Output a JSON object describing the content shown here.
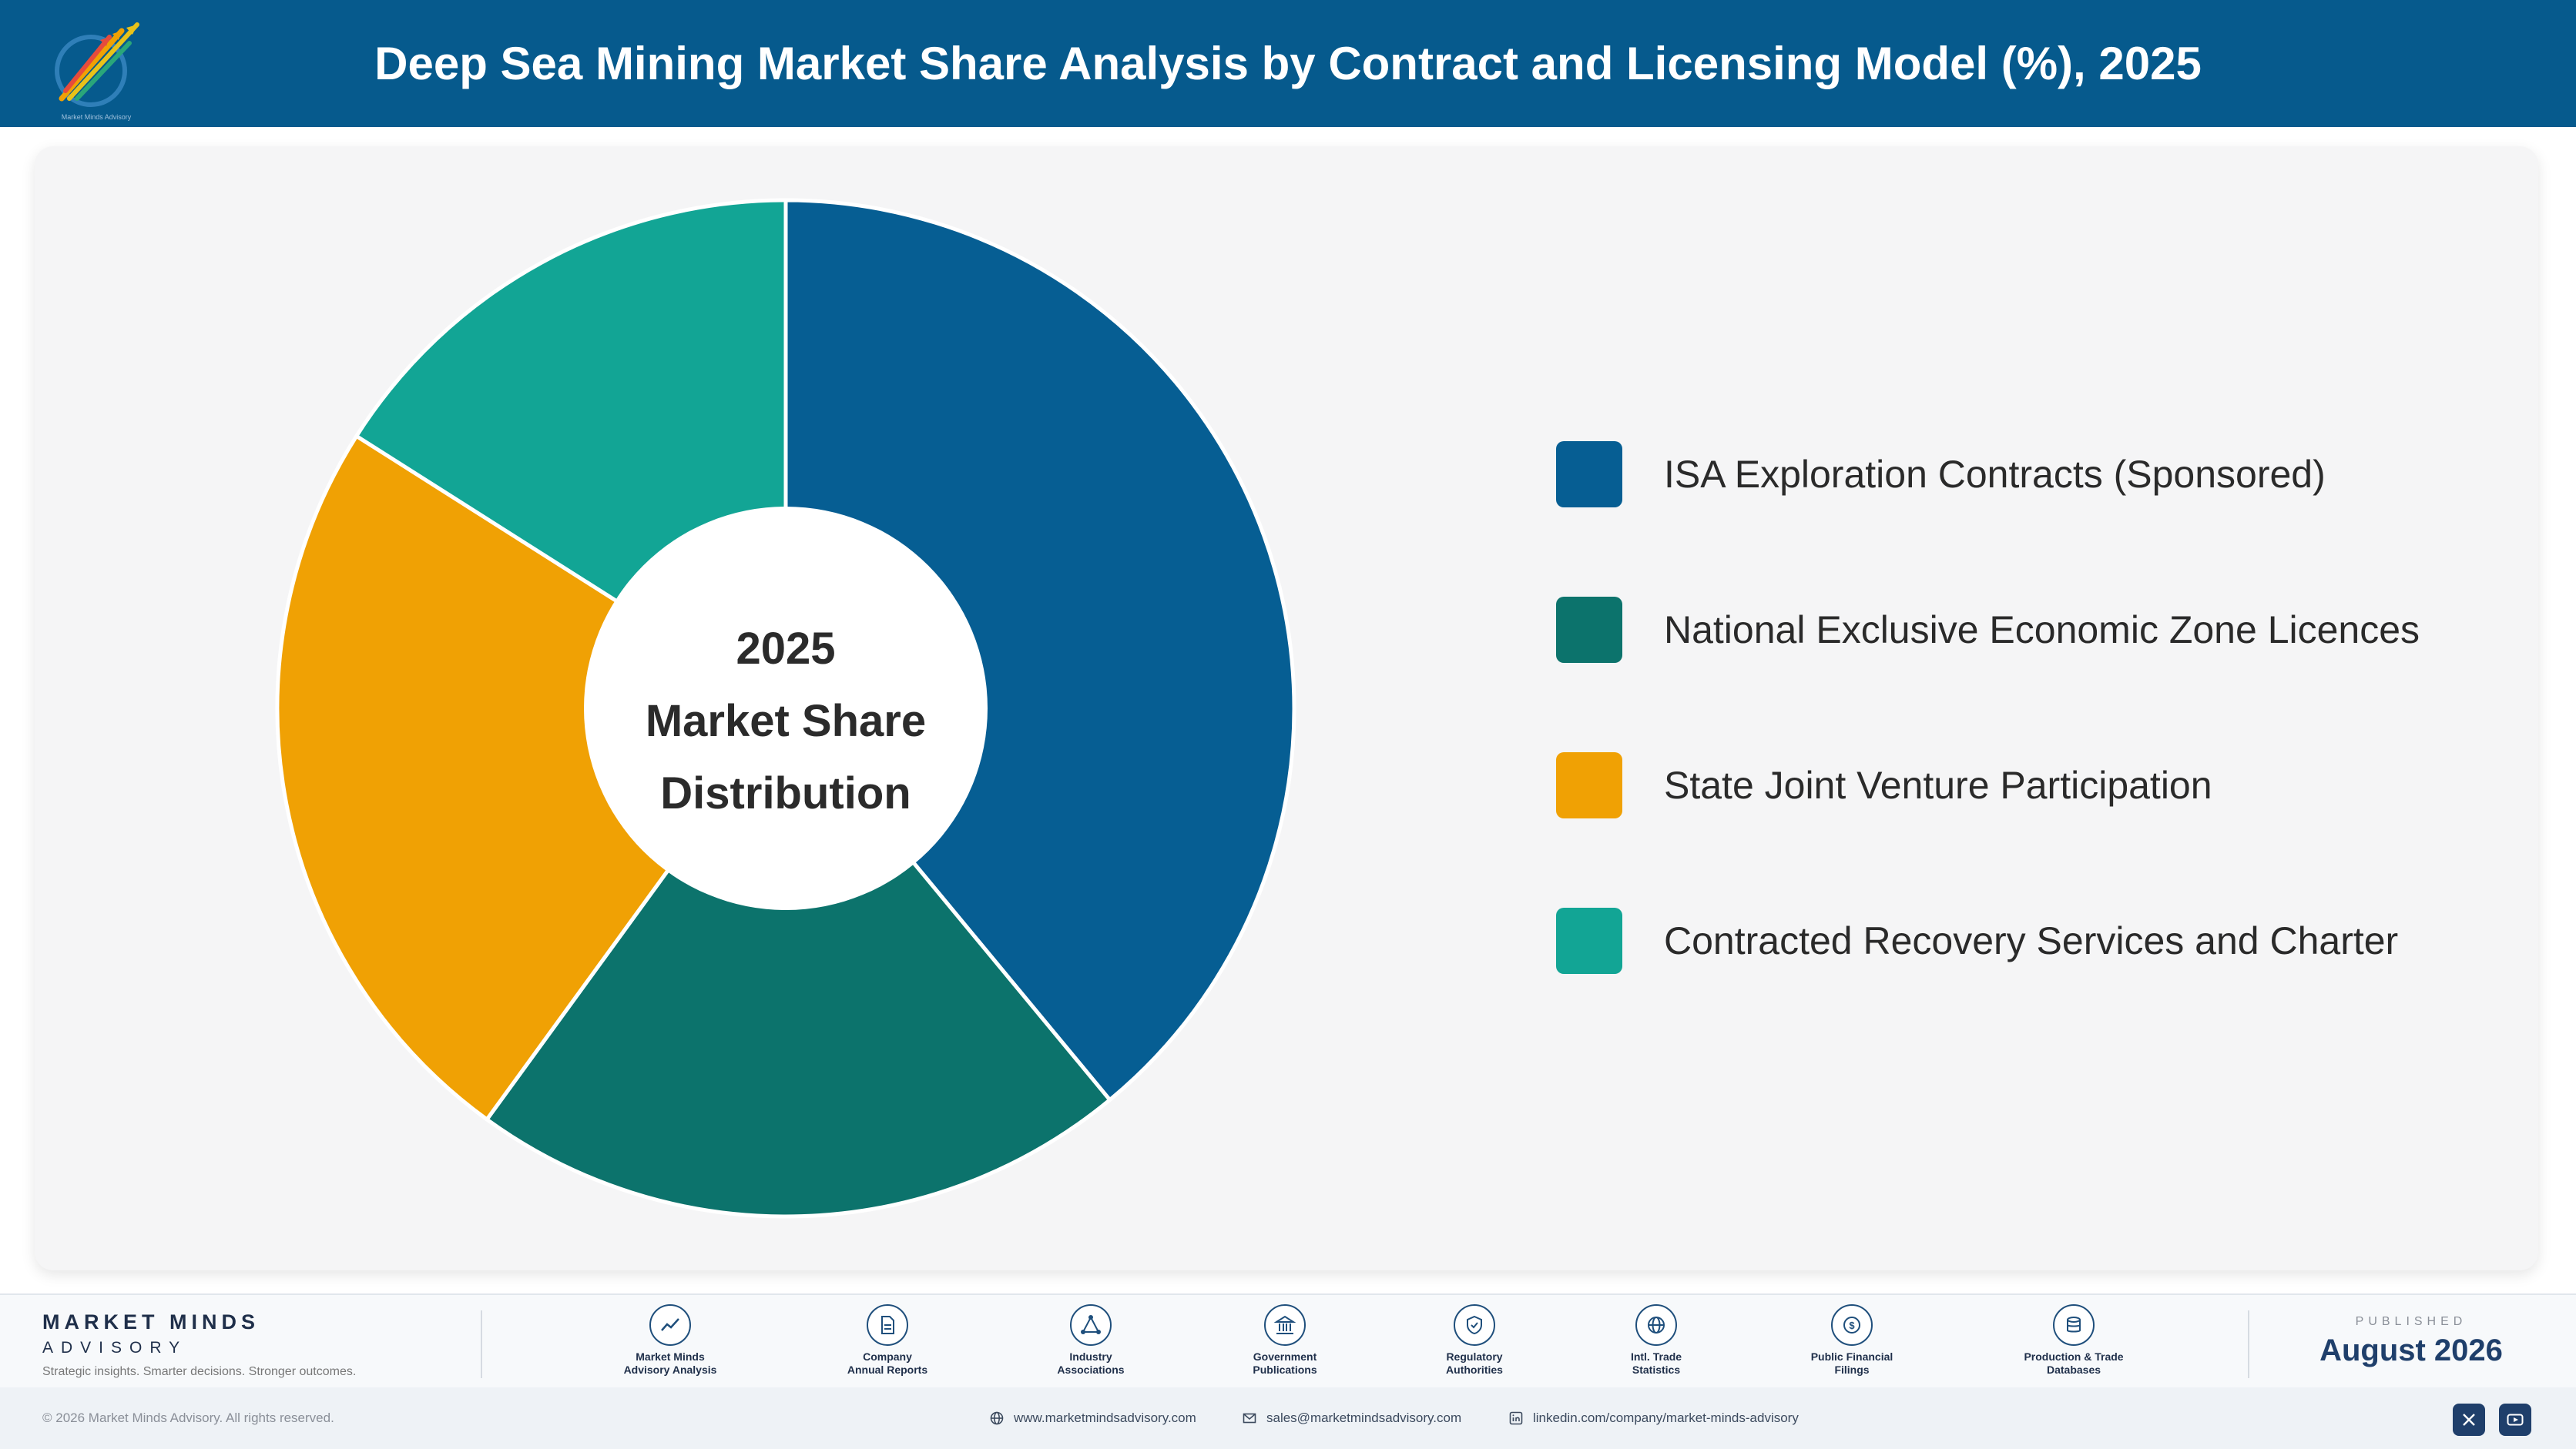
{
  "header": {
    "title": "Deep Sea Mining Market Share Analysis by Contract and Licensing Model (%), 2025",
    "logo_icon": "market-minds-logo-icon",
    "logo_text": "Market Minds Advisory"
  },
  "chart_data": {
    "type": "pie",
    "style": "donut",
    "title": "Deep Sea Mining Market Share Analysis by Contract and Licensing Model (%), 2025",
    "center_label": [
      "2025",
      "Market Share",
      "Distribution"
    ],
    "legend_position": "right",
    "categories": [
      "ISA Exploration Contracts (Sponsored)",
      "National Exclusive Economic Zone Licences",
      "State Joint Venture Participation",
      "Contracted Recovery Services and Charter"
    ],
    "values": [
      39,
      21,
      24,
      16
    ],
    "colors": [
      "#065e93",
      "#0c736c",
      "#f0a104",
      "#12a595"
    ]
  },
  "footer": {
    "brand_name": "MARKET MINDS",
    "brand_sub": "ADVISORY",
    "tagline": "Strategic insights. Smarter decisions. Stronger outcomes.",
    "sources": [
      {
        "label": "Market Minds\nAdvisory Analysis",
        "icon": "trend-chart-icon"
      },
      {
        "label": "Company\nAnnual Reports",
        "icon": "document-icon"
      },
      {
        "label": "Industry\nAssociations",
        "icon": "network-icon"
      },
      {
        "label": "Government\nPublications",
        "icon": "government-building-icon"
      },
      {
        "label": "Regulatory\nAuthorities",
        "icon": "shield-check-icon"
      },
      {
        "label": "Intl. Trade\nStatistics",
        "icon": "globe-icon"
      },
      {
        "label": "Public Financial\nFilings",
        "icon": "dollar-coin-icon"
      },
      {
        "label": "Production & Trade\nDatabases",
        "icon": "database-icon"
      }
    ],
    "published_label": "PUBLISHED",
    "published_date": "August 2026"
  },
  "bottom_bar": {
    "copyright": "© 2026 Market Minds Advisory. All rights reserved.",
    "website": "www.marketmindsadvisory.com",
    "email": "sales@marketmindsadvisory.com",
    "linkedin": "linkedin.com/company/market-minds-advisory",
    "social_icons": [
      "x-icon",
      "youtube-icon"
    ]
  }
}
